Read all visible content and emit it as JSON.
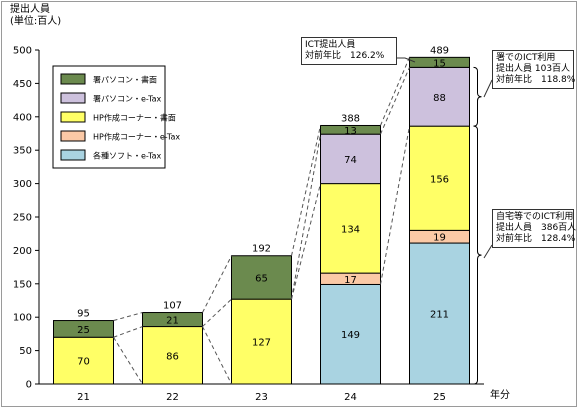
{
  "chart_data": {
    "type": "bar",
    "stacked": true,
    "ylabel": "提出人員",
    "yunit": "(単位:百人)",
    "xunit": "年分",
    "categories": [
      "21",
      "22",
      "23",
      "24",
      "25"
    ],
    "ylim": [
      0,
      500
    ],
    "yticks": [
      0,
      50,
      100,
      150,
      200,
      250,
      300,
      350,
      400,
      450,
      500
    ],
    "grid": false,
    "legend_position": "top-left",
    "series": [
      {
        "name": "各種ソフト・e-Tax",
        "color": "#a9d3e1",
        "values": [
          null,
          null,
          null,
          149,
          211
        ]
      },
      {
        "name": "HP作成コーナー・e-Tax",
        "color": "#fbc9a6",
        "values": [
          null,
          null,
          null,
          17,
          19
        ]
      },
      {
        "name": "HP作成コーナー・書面",
        "color": "#ffff66",
        "values": [
          70,
          86,
          127,
          134,
          156
        ]
      },
      {
        "name": "署パソコン・e-Tax",
        "color": "#cdc1dd",
        "values": [
          null,
          null,
          null,
          74,
          88
        ]
      },
      {
        "name": "署パソコン・書面",
        "color": "#6b8a4e",
        "values": [
          25,
          21,
          65,
          13,
          15
        ]
      }
    ],
    "totals": [
      95,
      107,
      192,
      388,
      489
    ],
    "annotations": [
      {
        "lines": [
          "ICT提出人員",
          "対前年比　126.2%"
        ]
      },
      {
        "lines": [
          "署でのICT利用",
          "提出人員 103百人",
          "対前年比　118.8%"
        ]
      },
      {
        "lines": [
          "自宅等でのICT利用",
          "提出人員　386百人",
          "対前年比　128.4%"
        ]
      }
    ]
  }
}
